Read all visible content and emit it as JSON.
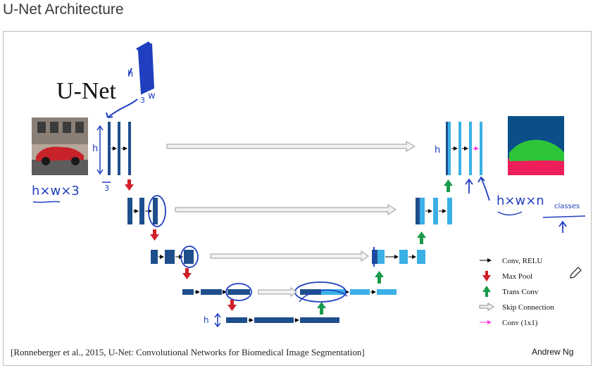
{
  "page": {
    "title": "U-Net Architecture"
  },
  "diagram": {
    "heading": "U-Net",
    "citation": "[Ronneberger et al., 2015, U-Net: Convolutional Networks for Biomedical Image Segmentation]",
    "author": "Andrew Ng",
    "legend": [
      {
        "label": "Conv, RELU",
        "icon": "black-arrow-icon",
        "color": "#000000"
      },
      {
        "label": "Max Pool",
        "icon": "red-down-arrow-icon",
        "color": "#d0202a"
      },
      {
        "label": "Trans Conv",
        "icon": "green-up-arrow-icon",
        "color": "#1a9a4a"
      },
      {
        "label": "Skip Connection",
        "icon": "hollow-arrow-icon",
        "color": "#cfcfcf"
      },
      {
        "label": "Conv (1x1)",
        "icon": "magenta-arrow-icon",
        "color": "#ff3ad6"
      }
    ],
    "annotations": {
      "input_dims": "h×w×3",
      "output_dims": "h×w×n",
      "output_classes": "classes",
      "h": "h",
      "three": "3",
      "w": "w"
    },
    "colors": {
      "encoder_block": "#1f4e8c",
      "decoder_block": "#3ab0e6",
      "ink": "#1f3fbf"
    }
  }
}
